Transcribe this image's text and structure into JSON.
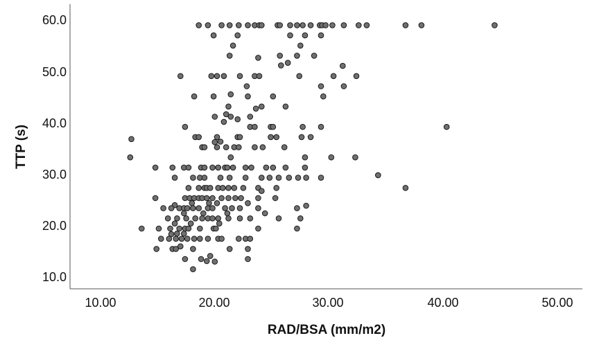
{
  "chart_data": {
    "type": "scatter",
    "xlabel": "RAD/BSA (mm/m2)",
    "ylabel": "TTP (s)",
    "xlim": [
      8.2,
      50.5
    ],
    "ylim": [
      8.0,
      63.8
    ],
    "x_ticks": [
      "10.00",
      "20.00",
      "30.00",
      "40.00",
      "50.00"
    ],
    "y_ticks": [
      "10.0",
      "20.0",
      "30.0",
      "40.0",
      "50.0",
      "60.0"
    ],
    "grid": false,
    "legend": "none",
    "marker_color": "#707070",
    "points": [
      [
        18.6,
        59.4
      ],
      [
        19.4,
        59.4
      ],
      [
        20.6,
        59.4
      ],
      [
        21.3,
        59.4
      ],
      [
        22.1,
        59.4
      ],
      [
        22.9,
        59.4
      ],
      [
        23.5,
        59.4
      ],
      [
        23.9,
        59.4
      ],
      [
        24.1,
        59.4
      ],
      [
        25.5,
        59.4
      ],
      [
        25.7,
        59.4
      ],
      [
        26.6,
        59.4
      ],
      [
        27.2,
        59.4
      ],
      [
        27.7,
        59.4
      ],
      [
        28.4,
        59.4
      ],
      [
        29.2,
        59.4
      ],
      [
        29.4,
        59.4
      ],
      [
        29.7,
        59.4
      ],
      [
        30.3,
        59.4
      ],
      [
        31.3,
        59.4
      ],
      [
        32.6,
        59.4
      ],
      [
        33.3,
        59.4
      ],
      [
        36.7,
        59.4
      ],
      [
        38.1,
        59.4
      ],
      [
        44.5,
        59.4
      ],
      [
        19.9,
        57.4
      ],
      [
        22.0,
        57.4
      ],
      [
        26.6,
        57.4
      ],
      [
        27.9,
        57.4
      ],
      [
        29.3,
        57.4
      ],
      [
        21.6,
        55.4
      ],
      [
        27.5,
        55.4
      ],
      [
        21.3,
        53.4
      ],
      [
        23.8,
        53.0
      ],
      [
        25.7,
        53.4
      ],
      [
        27.2,
        53.4
      ],
      [
        28.7,
        53.4
      ],
      [
        26.4,
        52.0
      ],
      [
        25.8,
        51.5
      ],
      [
        31.2,
        51.4
      ],
      [
        17.0,
        49.4
      ],
      [
        19.7,
        49.4
      ],
      [
        20.2,
        49.4
      ],
      [
        20.8,
        49.4
      ],
      [
        22.2,
        49.4
      ],
      [
        23.5,
        49.4
      ],
      [
        23.9,
        49.4
      ],
      [
        27.4,
        49.4
      ],
      [
        30.4,
        49.4
      ],
      [
        32.4,
        49.4
      ],
      [
        22.8,
        47.4
      ],
      [
        29.3,
        47.4
      ],
      [
        31.3,
        47.4
      ],
      [
        18.2,
        45.4
      ],
      [
        19.9,
        45.4
      ],
      [
        21.4,
        45.8
      ],
      [
        22.9,
        45.4
      ],
      [
        25.1,
        45.4
      ],
      [
        29.5,
        45.4
      ],
      [
        21.2,
        43.4
      ],
      [
        23.6,
        43.0
      ],
      [
        24.1,
        43.4
      ],
      [
        26.2,
        43.4
      ],
      [
        20.0,
        41.4
      ],
      [
        21.0,
        41.9
      ],
      [
        21.4,
        41.4
      ],
      [
        23.1,
        41.4
      ],
      [
        22.0,
        40.9
      ],
      [
        17.4,
        39.4
      ],
      [
        20.8,
        40.4
      ],
      [
        23.1,
        39.4
      ],
      [
        23.5,
        39.4
      ],
      [
        24.9,
        39.4
      ],
      [
        25.1,
        39.4
      ],
      [
        27.7,
        39.4
      ],
      [
        29.3,
        39.4
      ],
      [
        40.3,
        39.4
      ],
      [
        12.7,
        37.0
      ],
      [
        18.3,
        37.4
      ],
      [
        18.6,
        37.4
      ],
      [
        20.2,
        37.4
      ],
      [
        22.0,
        37.4
      ],
      [
        22.2,
        37.4
      ],
      [
        24.9,
        37.4
      ],
      [
        25.4,
        37.4
      ],
      [
        27.6,
        37.4
      ],
      [
        28.4,
        37.4
      ],
      [
        20.0,
        36.4
      ],
      [
        20.5,
        36.5
      ],
      [
        18.9,
        35.4
      ],
      [
        19.1,
        35.4
      ],
      [
        20.2,
        35.4
      ],
      [
        21.0,
        35.4
      ],
      [
        21.7,
        35.4
      ],
      [
        22.1,
        35.4
      ],
      [
        23.5,
        35.4
      ],
      [
        24.2,
        35.4
      ],
      [
        26.1,
        35.4
      ],
      [
        12.6,
        33.4
      ],
      [
        21.4,
        33.4
      ],
      [
        27.9,
        33.4
      ],
      [
        30.2,
        33.4
      ],
      [
        32.3,
        33.4
      ],
      [
        14.8,
        31.4
      ],
      [
        16.3,
        31.4
      ],
      [
        17.3,
        31.4
      ],
      [
        17.7,
        31.4
      ],
      [
        18.8,
        31.4
      ],
      [
        19.1,
        31.4
      ],
      [
        19.8,
        31.4
      ],
      [
        20.3,
        31.4
      ],
      [
        20.9,
        31.4
      ],
      [
        21.1,
        31.4
      ],
      [
        21.6,
        31.4
      ],
      [
        22.7,
        31.4
      ],
      [
        23.2,
        31.4
      ],
      [
        24.5,
        31.4
      ],
      [
        25.1,
        31.4
      ],
      [
        26.2,
        31.4
      ],
      [
        27.9,
        31.4
      ],
      [
        16.5,
        29.4
      ],
      [
        18.1,
        29.4
      ],
      [
        18.7,
        29.4
      ],
      [
        19.1,
        29.4
      ],
      [
        20.5,
        29.4
      ],
      [
        21.3,
        29.4
      ],
      [
        22.7,
        29.4
      ],
      [
        24.1,
        29.4
      ],
      [
        24.8,
        29.4
      ],
      [
        25.6,
        29.4
      ],
      [
        26.5,
        29.4
      ],
      [
        27.3,
        29.4
      ],
      [
        28.0,
        29.4
      ],
      [
        29.3,
        29.4
      ],
      [
        34.3,
        29.9
      ],
      [
        17.7,
        27.4
      ],
      [
        18.6,
        27.4
      ],
      [
        19.1,
        27.4
      ],
      [
        19.3,
        27.4
      ],
      [
        19.6,
        27.4
      ],
      [
        20.3,
        27.4
      ],
      [
        20.7,
        27.4
      ],
      [
        21.2,
        27.4
      ],
      [
        21.7,
        27.4
      ],
      [
        22.5,
        27.4
      ],
      [
        23.8,
        27.4
      ],
      [
        24.1,
        26.8
      ],
      [
        25.4,
        27.4
      ],
      [
        36.7,
        27.4
      ],
      [
        17.4,
        25.4
      ],
      [
        17.8,
        25.4
      ],
      [
        18.2,
        25.4
      ],
      [
        18.6,
        25.4
      ],
      [
        18.9,
        25.4
      ],
      [
        19.3,
        25.4
      ],
      [
        19.8,
        25.4
      ],
      [
        20.6,
        25.4
      ],
      [
        21.2,
        25.4
      ],
      [
        21.8,
        25.4
      ],
      [
        22.3,
        25.4
      ],
      [
        23.8,
        25.4
      ],
      [
        25.3,
        25.4
      ],
      [
        14.8,
        25.4
      ],
      [
        16.5,
        24.0
      ],
      [
        18.0,
        24.4
      ],
      [
        19.5,
        24.4
      ],
      [
        20.2,
        24.4
      ],
      [
        22.9,
        24.4
      ],
      [
        28.0,
        23.9
      ],
      [
        15.5,
        23.4
      ],
      [
        16.2,
        23.4
      ],
      [
        16.9,
        23.4
      ],
      [
        17.3,
        23.4
      ],
      [
        17.6,
        23.4
      ],
      [
        18.1,
        23.4
      ],
      [
        18.6,
        23.4
      ],
      [
        19.4,
        23.4
      ],
      [
        19.8,
        23.4
      ],
      [
        20.9,
        23.4
      ],
      [
        21.5,
        23.4
      ],
      [
        22.2,
        23.4
      ],
      [
        23.8,
        23.4
      ],
      [
        27.2,
        23.4
      ],
      [
        17.3,
        22.4
      ],
      [
        19.0,
        22.4
      ],
      [
        21.1,
        22.4
      ],
      [
        24.4,
        22.4
      ],
      [
        15.9,
        21.4
      ],
      [
        16.7,
        21.4
      ],
      [
        17.5,
        21.4
      ],
      [
        18.3,
        21.4
      ],
      [
        18.9,
        21.4
      ],
      [
        19.4,
        21.4
      ],
      [
        19.8,
        21.4
      ],
      [
        20.3,
        21.4
      ],
      [
        21.2,
        21.4
      ],
      [
        22.2,
        21.4
      ],
      [
        23.1,
        21.4
      ],
      [
        25.6,
        21.4
      ],
      [
        27.5,
        21.4
      ],
      [
        16.5,
        20.4
      ],
      [
        17.9,
        20.4
      ],
      [
        20.4,
        20.4
      ],
      [
        13.6,
        19.4
      ],
      [
        15.1,
        19.4
      ],
      [
        16.1,
        19.4
      ],
      [
        16.9,
        19.4
      ],
      [
        17.4,
        19.4
      ],
      [
        17.7,
        19.4
      ],
      [
        18.7,
        19.4
      ],
      [
        19.9,
        19.4
      ],
      [
        20.1,
        19.4
      ],
      [
        23.8,
        19.4
      ],
      [
        27.2,
        19.4
      ],
      [
        16.2,
        18.3
      ],
      [
        16.7,
        18.4
      ],
      [
        17.3,
        18.4
      ],
      [
        15.3,
        17.4
      ],
      [
        16.0,
        17.4
      ],
      [
        16.6,
        17.4
      ],
      [
        17.1,
        17.4
      ],
      [
        17.6,
        17.4
      ],
      [
        18.2,
        17.4
      ],
      [
        18.7,
        17.4
      ],
      [
        19.4,
        17.4
      ],
      [
        20.3,
        17.4
      ],
      [
        20.6,
        17.4
      ],
      [
        22.1,
        17.4
      ],
      [
        22.7,
        17.4
      ],
      [
        23.1,
        17.4
      ],
      [
        14.9,
        15.4
      ],
      [
        16.3,
        15.4
      ],
      [
        16.6,
        15.4
      ],
      [
        17.0,
        15.9
      ],
      [
        18.1,
        15.4
      ],
      [
        21.3,
        15.4
      ],
      [
        22.9,
        15.4
      ],
      [
        17.4,
        13.4
      ],
      [
        18.8,
        13.4
      ],
      [
        19.3,
        13.0
      ],
      [
        19.6,
        14.0
      ],
      [
        20.0,
        12.9
      ],
      [
        22.9,
        13.4
      ],
      [
        18.1,
        11.4
      ]
    ]
  }
}
